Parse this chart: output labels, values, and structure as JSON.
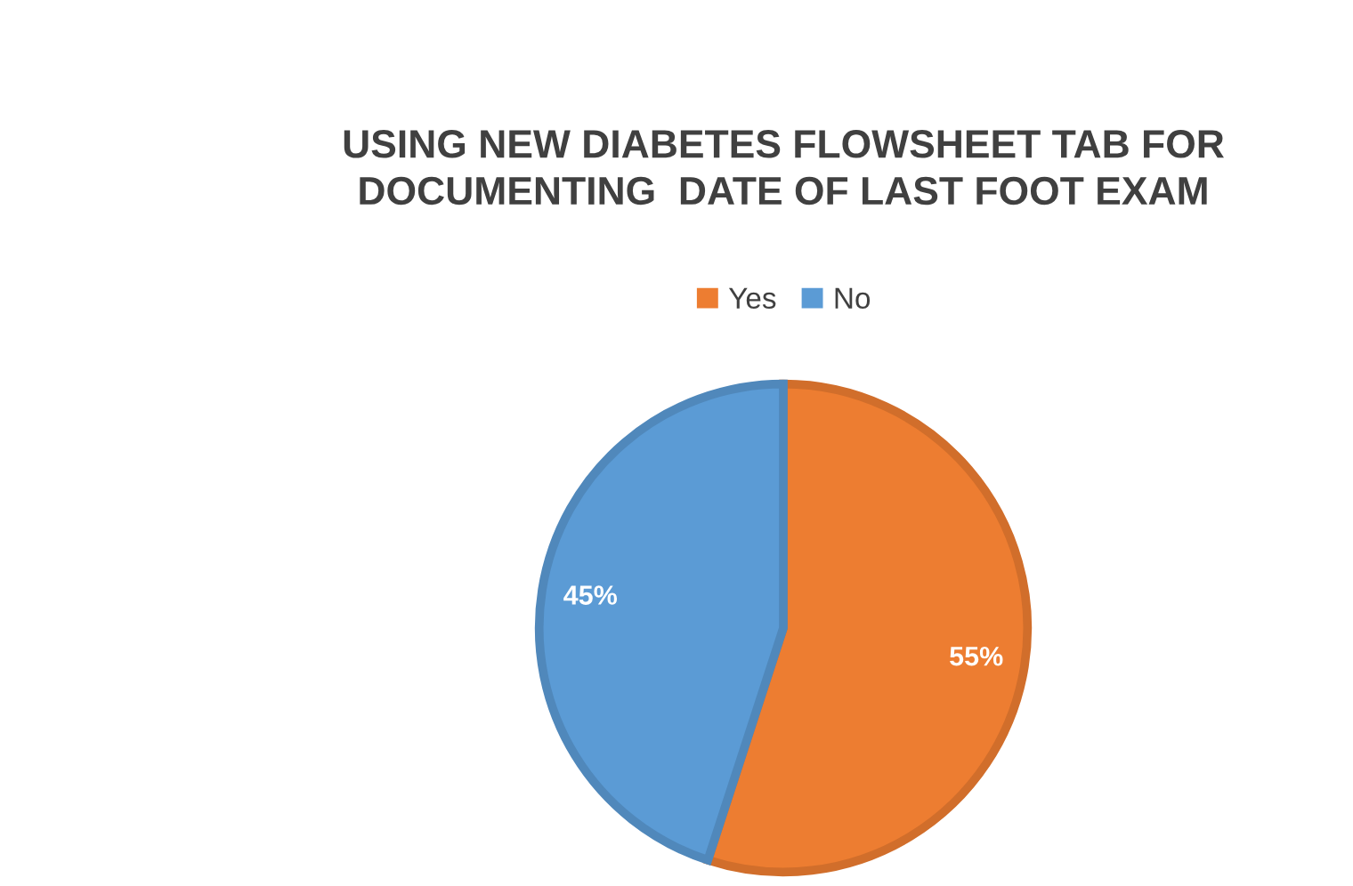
{
  "chart_data": {
    "type": "pie",
    "title": "USING NEW DIABETES FLOWSHEET TAB FOR\nDOCUMENTING  DATE OF LAST FOOT EXAM",
    "categories": [
      "Yes",
      "No"
    ],
    "values": [
      55,
      45
    ],
    "colors": [
      "#ed7d31",
      "#5b9bd5"
    ],
    "value_labels": [
      "55%",
      "45%"
    ],
    "legend": "top"
  }
}
